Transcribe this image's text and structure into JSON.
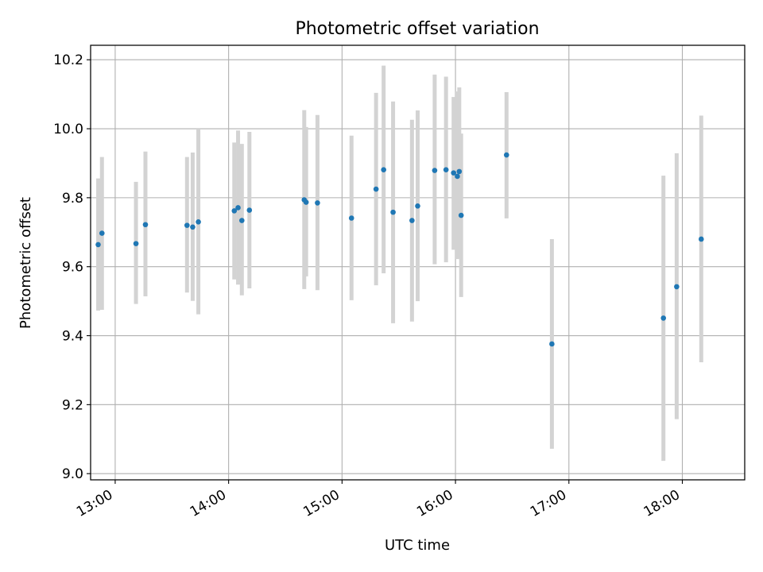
{
  "chart_data": {
    "type": "scatter",
    "title": "Photometric offset variation",
    "xlabel": "UTC time",
    "ylabel": "Photometric offset",
    "x_unit": "UTC time (HH:MM)",
    "xlim": [
      "12:47",
      "18:33"
    ],
    "ylim": [
      8.982,
      10.242
    ],
    "xticks": [
      "13:00",
      "14:00",
      "15:00",
      "16:00",
      "17:00",
      "18:00"
    ],
    "yticks": [
      "9.0",
      "9.2",
      "9.4",
      "9.6",
      "9.8",
      "10.0",
      "10.2"
    ],
    "grid": true,
    "colors": {
      "points": "#1f77b4",
      "errorbars": "#d3d3d3"
    },
    "series": [
      {
        "x": [
          "12:51",
          "12:53",
          "13:11",
          "13:16",
          "13:38",
          "13:41",
          "13:44",
          "14:03",
          "14:05",
          "14:07",
          "14:11",
          "14:40",
          "14:41",
          "14:47",
          "15:05",
          "15:18",
          "15:22",
          "15:27",
          "15:37",
          "15:40",
          "15:49",
          "15:55",
          "15:59",
          "16:01",
          "16:02",
          "16:03",
          "16:27",
          "16:51",
          "17:50",
          "17:57",
          "18:10"
        ],
        "y": [
          9.664,
          9.697,
          9.667,
          9.722,
          9.72,
          9.715,
          9.73,
          9.762,
          9.771,
          9.734,
          9.764,
          9.794,
          9.787,
          9.785,
          9.741,
          9.825,
          9.881,
          9.758,
          9.734,
          9.776,
          9.879,
          9.881,
          9.872,
          9.862,
          9.876,
          9.749,
          9.924,
          9.376,
          9.451,
          9.542,
          9.68
        ],
        "yerr_low": [
          9.473,
          9.475,
          9.492,
          9.514,
          9.525,
          9.501,
          9.462,
          9.563,
          9.548,
          9.517,
          9.537,
          9.535,
          9.572,
          9.532,
          9.503,
          9.546,
          9.581,
          9.436,
          9.441,
          9.5,
          9.607,
          9.613,
          9.649,
          9.622,
          9.686,
          9.512,
          9.74,
          9.072,
          9.037,
          9.158,
          9.323
        ],
        "yerr_high": [
          9.856,
          9.918,
          9.846,
          9.934,
          9.918,
          9.931,
          10.0,
          9.96,
          9.995,
          9.956,
          9.991,
          10.054,
          10.005,
          10.04,
          9.98,
          10.104,
          10.183,
          10.079,
          10.026,
          10.053,
          10.157,
          10.151,
          10.092,
          10.108,
          10.12,
          9.986,
          10.106,
          9.68,
          9.864,
          9.929,
          10.038
        ]
      }
    ]
  }
}
